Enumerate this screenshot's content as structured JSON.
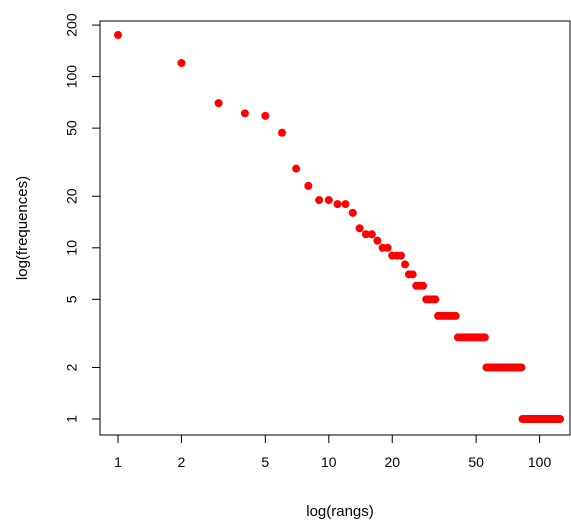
{
  "chart_data": {
    "type": "scatter",
    "title": "",
    "xlabel": "log(rangs)",
    "ylabel": "log(frequences)",
    "x_scale": "log",
    "y_scale": "log",
    "xlim": [
      1,
      125
    ],
    "ylim": [
      0.95,
      200
    ],
    "x_ticks": [
      1,
      2,
      5,
      10,
      20,
      50,
      100
    ],
    "y_ticks": [
      1,
      2,
      5,
      10,
      20,
      50,
      100,
      200
    ],
    "grid": false,
    "legend": "none",
    "point_color": "#ff0000",
    "points": [
      [
        1,
        175
      ],
      [
        2,
        120
      ],
      [
        3,
        70
      ],
      [
        4,
        61
      ],
      [
        5,
        59
      ],
      [
        6,
        47
      ],
      [
        7,
        29
      ],
      [
        8,
        23
      ],
      [
        9,
        19
      ],
      [
        10,
        19
      ],
      [
        11,
        18
      ],
      [
        12,
        18
      ],
      [
        13,
        16
      ],
      [
        14,
        13
      ],
      [
        15,
        12
      ],
      [
        16,
        12
      ],
      [
        17,
        11
      ],
      [
        18,
        10
      ],
      [
        19,
        10
      ],
      [
        20,
        9
      ],
      [
        21,
        9
      ],
      [
        22,
        9
      ],
      [
        23,
        8
      ],
      [
        24,
        7
      ],
      [
        25,
        7
      ],
      [
        26,
        6
      ],
      [
        27,
        6
      ],
      [
        28,
        6
      ],
      [
        29,
        5
      ],
      [
        30,
        5
      ],
      [
        31,
        5
      ],
      [
        32,
        5
      ],
      [
        33,
        4
      ],
      [
        34,
        4
      ],
      [
        35,
        4
      ],
      [
        36,
        4
      ],
      [
        37,
        4
      ],
      [
        38,
        4
      ],
      [
        39,
        4
      ],
      [
        40,
        4
      ],
      [
        41,
        3
      ],
      [
        42,
        3
      ],
      [
        43,
        3
      ],
      [
        44,
        3
      ],
      [
        45,
        3
      ],
      [
        46,
        3
      ],
      [
        47,
        3
      ],
      [
        48,
        3
      ],
      [
        49,
        3
      ],
      [
        50,
        3
      ],
      [
        51,
        3
      ],
      [
        52,
        3
      ],
      [
        53,
        3
      ],
      [
        54,
        3
      ],
      [
        55,
        3
      ],
      [
        56,
        2
      ],
      [
        57,
        2
      ],
      [
        58,
        2
      ],
      [
        59,
        2
      ],
      [
        60,
        2
      ],
      [
        61,
        2
      ],
      [
        62,
        2
      ],
      [
        63,
        2
      ],
      [
        64,
        2
      ],
      [
        65,
        2
      ],
      [
        66,
        2
      ],
      [
        67,
        2
      ],
      [
        68,
        2
      ],
      [
        69,
        2
      ],
      [
        70,
        2
      ],
      [
        71,
        2
      ],
      [
        72,
        2
      ],
      [
        73,
        2
      ],
      [
        74,
        2
      ],
      [
        75,
        2
      ],
      [
        76,
        2
      ],
      [
        77,
        2
      ],
      [
        78,
        2
      ],
      [
        79,
        2
      ],
      [
        80,
        2
      ],
      [
        81,
        2
      ],
      [
        82,
        2
      ],
      [
        83,
        1
      ],
      [
        84,
        1
      ],
      [
        85,
        1
      ],
      [
        86,
        1
      ],
      [
        87,
        1
      ],
      [
        88,
        1
      ],
      [
        89,
        1
      ],
      [
        90,
        1
      ],
      [
        91,
        1
      ],
      [
        92,
        1
      ],
      [
        93,
        1
      ],
      [
        94,
        1
      ],
      [
        95,
        1
      ],
      [
        96,
        1
      ],
      [
        97,
        1
      ],
      [
        98,
        1
      ],
      [
        99,
        1
      ],
      [
        100,
        1
      ],
      [
        101,
        1
      ],
      [
        102,
        1
      ],
      [
        103,
        1
      ],
      [
        104,
        1
      ],
      [
        105,
        1
      ],
      [
        106,
        1
      ],
      [
        107,
        1
      ],
      [
        108,
        1
      ],
      [
        109,
        1
      ],
      [
        110,
        1
      ],
      [
        111,
        1
      ],
      [
        112,
        1
      ],
      [
        113,
        1
      ],
      [
        114,
        1
      ],
      [
        115,
        1
      ],
      [
        116,
        1
      ],
      [
        117,
        1
      ],
      [
        118,
        1
      ],
      [
        119,
        1
      ],
      [
        120,
        1
      ],
      [
        121,
        1
      ],
      [
        122,
        1
      ],
      [
        123,
        1
      ],
      [
        124,
        1
      ],
      [
        125,
        1
      ]
    ]
  }
}
